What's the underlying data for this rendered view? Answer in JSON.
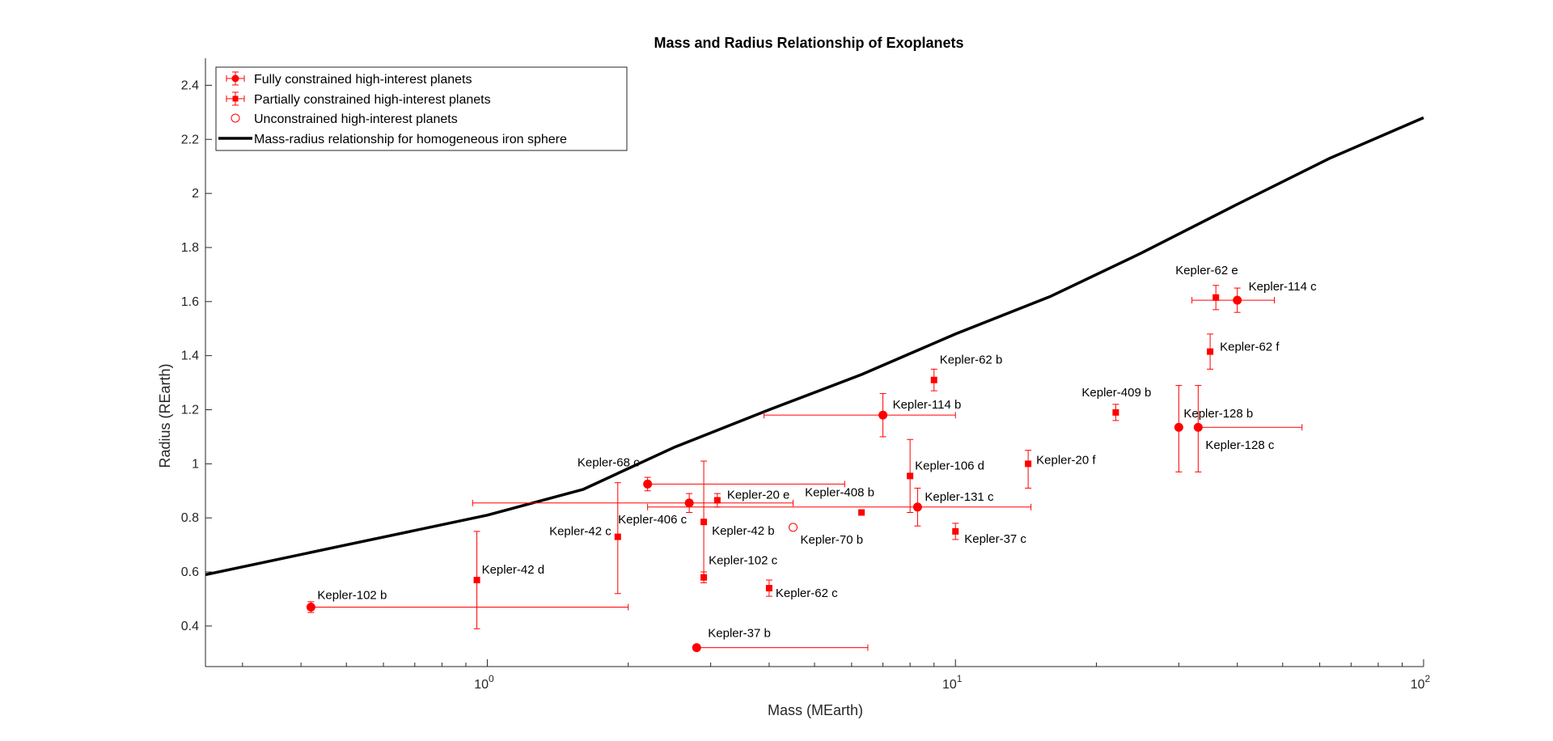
{
  "chart_data": {
    "type": "scatter",
    "title": "Mass and Radius Relationship of Exoplanets",
    "xlabel": "Mass (MEarth)",
    "ylabel": "Radius (REarth)",
    "xscale": "log",
    "xlim": [
      0.25,
      100
    ],
    "ylim": [
      0.25,
      2.5
    ],
    "xticks": [
      1,
      10,
      100
    ],
    "xtick_labels": [
      {
        "base": "10",
        "exp": "0"
      },
      {
        "base": "10",
        "exp": "1"
      },
      {
        "base": "10",
        "exp": "2"
      }
    ],
    "yticks": [
      0.4,
      0.6,
      0.8,
      1.0,
      1.2,
      1.4,
      1.6,
      1.8,
      2.0,
      2.2,
      2.4
    ],
    "ytick_labels": [
      "0.4",
      "0.6",
      "0.8",
      "1",
      "1.2",
      "1.4",
      "1.6",
      "1.8",
      "2",
      "2.2",
      "2.4"
    ],
    "grid": false,
    "legend_position": "top-left",
    "colors": {
      "points": "#ff0000",
      "curve": "#000000"
    },
    "legend": [
      {
        "label": "Fully constrained high-interest planets",
        "marker": "circle-errorbar"
      },
      {
        "label": "Partially constrained high-interest planets",
        "marker": "square-errorbar"
      },
      {
        "label": "Unconstrained high-interest planets",
        "marker": "open-circle"
      },
      {
        "label": "Mass-radius relationship for homogeneous iron sphere",
        "marker": "line"
      }
    ],
    "curve": {
      "name": "Mass-radius relationship for homogeneous iron sphere",
      "x": [
        0.25,
        0.5,
        1.0,
        1.6,
        2.5,
        4.0,
        6.3,
        10,
        16,
        25,
        40,
        63,
        100
      ],
      "y": [
        0.59,
        0.7,
        0.81,
        0.905,
        1.06,
        1.2,
        1.33,
        1.48,
        1.62,
        1.78,
        1.96,
        2.13,
        2.28
      ]
    },
    "points": [
      {
        "name": "Kepler-102 b",
        "type": "full",
        "x": 0.42,
        "y": 0.47,
        "xerr": [
          0.42,
          2.0
        ],
        "yerr": [
          0.45,
          0.49
        ]
      },
      {
        "name": "Kepler-42 d",
        "type": "partial",
        "x": 0.95,
        "y": 0.57,
        "yerr": [
          0.39,
          0.75
        ]
      },
      {
        "name": "Kepler-42 c",
        "type": "partial",
        "x": 1.9,
        "y": 0.73,
        "yerr": [
          0.52,
          0.93
        ]
      },
      {
        "name": "Kepler-68 c",
        "type": "full",
        "x": 2.2,
        "y": 0.925,
        "xerr": [
          2.2,
          5.8
        ],
        "yerr": [
          0.9,
          0.95
        ]
      },
      {
        "name": "Kepler-406 c",
        "type": "full",
        "x": 2.7,
        "y": 0.855,
        "xerr": [
          0.93,
          4.5
        ],
        "yerr": [
          0.82,
          0.89
        ]
      },
      {
        "name": "Kepler-20 e",
        "type": "partial",
        "x": 3.1,
        "y": 0.865,
        "yerr": [
          0.84,
          0.89
        ]
      },
      {
        "name": "Kepler-42 b",
        "type": "partial",
        "x": 2.9,
        "y": 0.785,
        "yerr": [
          0.57,
          1.01
        ]
      },
      {
        "name": "Kepler-102 c",
        "type": "partial",
        "x": 2.9,
        "y": 0.58,
        "yerr": [
          0.56,
          0.6
        ]
      },
      {
        "name": "Kepler-37 b",
        "type": "full",
        "x": 2.8,
        "y": 0.32,
        "xerr": [
          2.8,
          6.5
        ],
        "yerr": [
          0.31,
          0.33
        ]
      },
      {
        "name": "Kepler-62 c",
        "type": "partial",
        "x": 4.0,
        "y": 0.54,
        "yerr": [
          0.51,
          0.57
        ]
      },
      {
        "name": "Kepler-70  b",
        "type": "open",
        "x": 4.5,
        "y": 0.765
      },
      {
        "name": "Kepler-408 b",
        "type": "partial",
        "x": 6.3,
        "y": 0.82
      },
      {
        "name": "Kepler-114 b",
        "type": "full",
        "x": 7.0,
        "y": 1.18,
        "xerr": [
          3.9,
          10.0
        ],
        "yerr": [
          1.1,
          1.26
        ]
      },
      {
        "name": "Kepler-62 b",
        "type": "partial",
        "x": 9.0,
        "y": 1.31,
        "yerr": [
          1.27,
          1.35
        ]
      },
      {
        "name": "Kepler-106 d",
        "type": "partial",
        "x": 8.0,
        "y": 0.955,
        "yerr": [
          0.82,
          1.09
        ]
      },
      {
        "name": "Kepler-131 c",
        "type": "full",
        "x": 8.3,
        "y": 0.84,
        "xerr": [
          2.2,
          14.5
        ],
        "yerr": [
          0.77,
          0.91
        ]
      },
      {
        "name": "Kepler-37 c",
        "type": "partial",
        "x": 10.0,
        "y": 0.75,
        "yerr": [
          0.72,
          0.78
        ]
      },
      {
        "name": "Kepler-20 f",
        "type": "partial",
        "x": 14.3,
        "y": 1.0,
        "yerr": [
          0.91,
          1.05
        ]
      },
      {
        "name": "Kepler-409 b",
        "type": "partial",
        "x": 22.0,
        "y": 1.19,
        "yerr": [
          1.16,
          1.22
        ]
      },
      {
        "name": "Kepler-128 b",
        "type": "full",
        "x": 30.0,
        "y": 1.135,
        "yerr": [
          0.97,
          1.29
        ]
      },
      {
        "name": "Kepler-128 c",
        "type": "full",
        "x": 33.0,
        "y": 1.135,
        "xerr": [
          33.0,
          55.0
        ],
        "yerr": [
          0.97,
          1.29
        ]
      },
      {
        "name": "Kepler-62 e",
        "type": "partial",
        "x": 36.0,
        "y": 1.615,
        "yerr": [
          1.57,
          1.66
        ]
      },
      {
        "name": "Kepler-114 c",
        "type": "full",
        "x": 40.0,
        "y": 1.605,
        "xerr": [
          32.0,
          48.0
        ],
        "yerr": [
          1.56,
          1.65
        ]
      },
      {
        "name": "Kepler-62 f",
        "type": "partial",
        "x": 35.0,
        "y": 1.415,
        "yerr": [
          1.35,
          1.48
        ]
      }
    ]
  }
}
